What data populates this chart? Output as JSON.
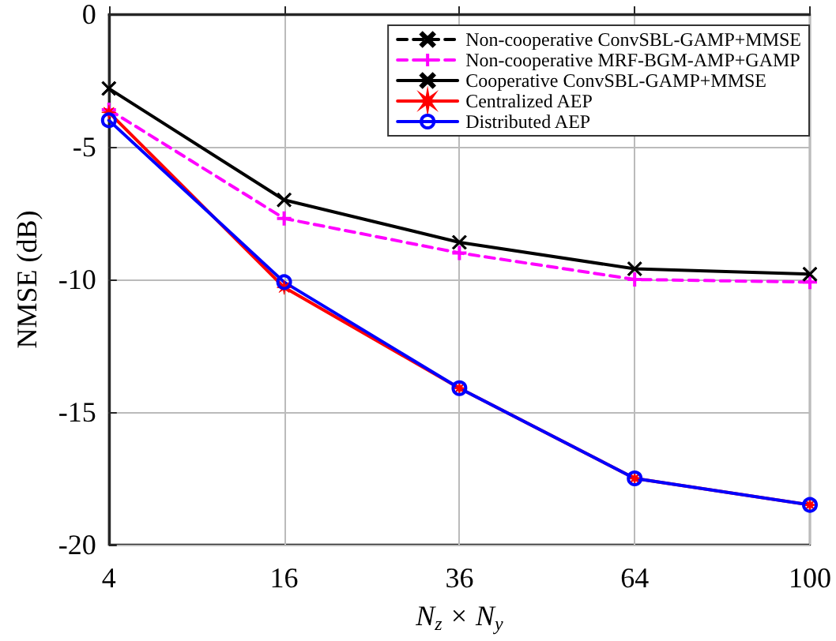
{
  "chart_data": {
    "type": "line",
    "xlabel": "N$_{z}$ × N$_{y}$",
    "ylabel": "NMSE (dB)",
    "categories": [
      "4",
      "16",
      "36",
      "64",
      "100"
    ],
    "series": [
      {
        "name": "Non-cooperative ConvSBL-GAMP+MMSE",
        "color": "#000000",
        "marker": "cross",
        "line_style": "dashed",
        "values": [
          null,
          null,
          null,
          null,
          null
        ]
      },
      {
        "name": "Non-cooperative MRF-BGM-AMP+GAMP",
        "color": "#ff00ff",
        "marker": "plus",
        "line_style": "dashed",
        "values": [
          -3.6,
          -7.7,
          -9.0,
          -10.0,
          -10.1
        ]
      },
      {
        "name": "Cooperative ConvSBL-GAMP+MMSE",
        "color": "#000000",
        "marker": "cross",
        "line_style": "solid",
        "values": [
          -2.8,
          -7.0,
          -8.6,
          -9.6,
          -9.8
        ]
      },
      {
        "name": "Centralized AEP",
        "color": "#ff0000",
        "marker": "star",
        "line_style": "solid",
        "values": [
          -3.7,
          -10.3,
          -14.1,
          -17.5,
          -18.5
        ]
      },
      {
        "name": "Distributed AEP",
        "color": "#0000ff",
        "marker": "circle",
        "line_style": "solid",
        "values": [
          -4.0,
          -10.1,
          -14.1,
          -17.5,
          -18.5
        ]
      }
    ],
    "ylim": [
      -20,
      0
    ],
    "yticks": [
      -20,
      -15,
      -10,
      -5,
      0
    ],
    "grid": true,
    "legend": "top right"
  }
}
